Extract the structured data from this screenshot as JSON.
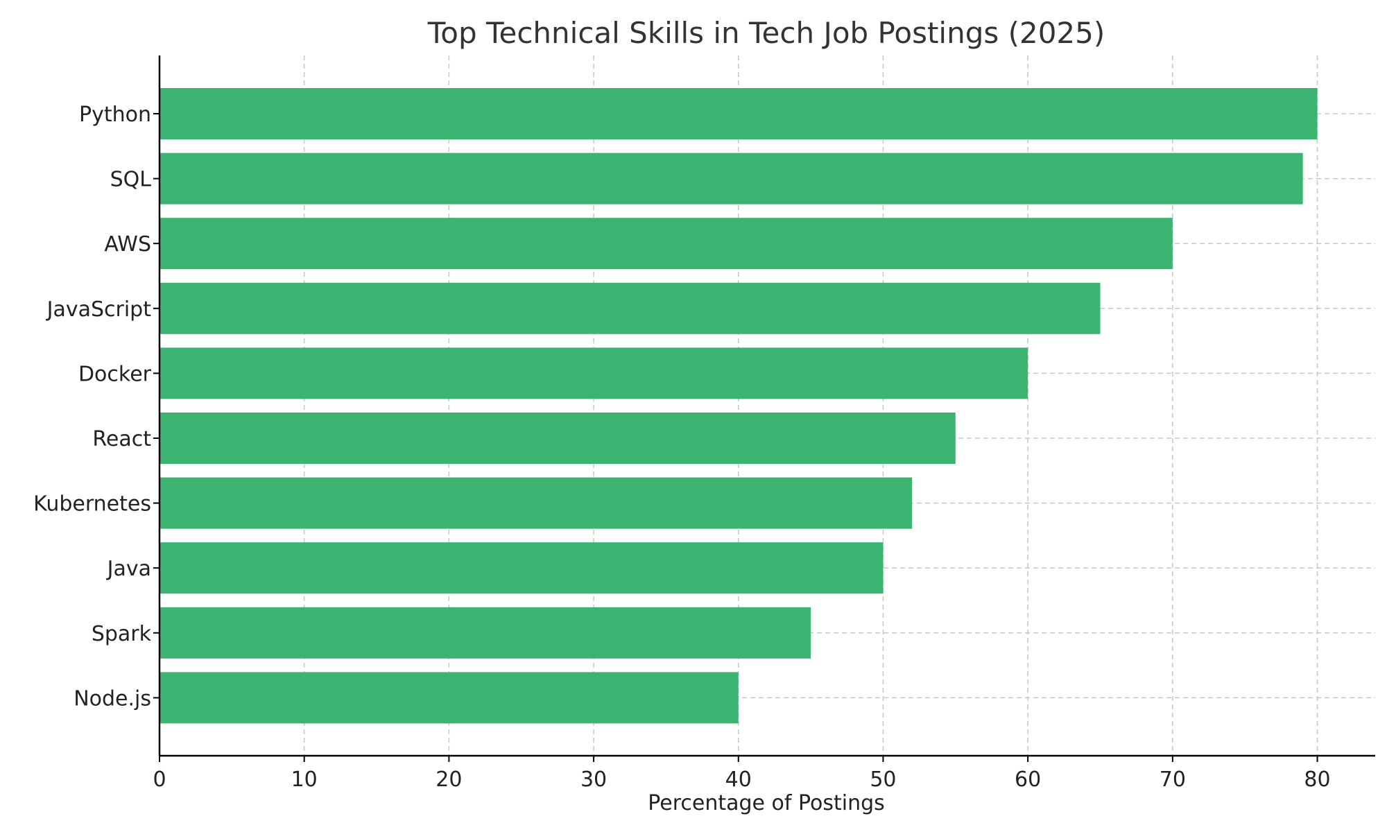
{
  "chart_data": {
    "type": "bar",
    "orientation": "horizontal",
    "title": "Top Technical Skills in Tech Job Postings (2025)",
    "xlabel": "Percentage of Postings",
    "ylabel": "",
    "categories": [
      "Python",
      "SQL",
      "AWS",
      "JavaScript",
      "Docker",
      "React",
      "Kubernetes",
      "Java",
      "Spark",
      "Node.js"
    ],
    "values": [
      80,
      79,
      70,
      65,
      60,
      55,
      52,
      50,
      45,
      40
    ],
    "xlim": [
      0,
      84
    ],
    "xticks": [
      "0",
      "10",
      "20",
      "30",
      "40",
      "50",
      "60",
      "70",
      "80"
    ],
    "grid": true,
    "bar_color": "#3cb371"
  }
}
